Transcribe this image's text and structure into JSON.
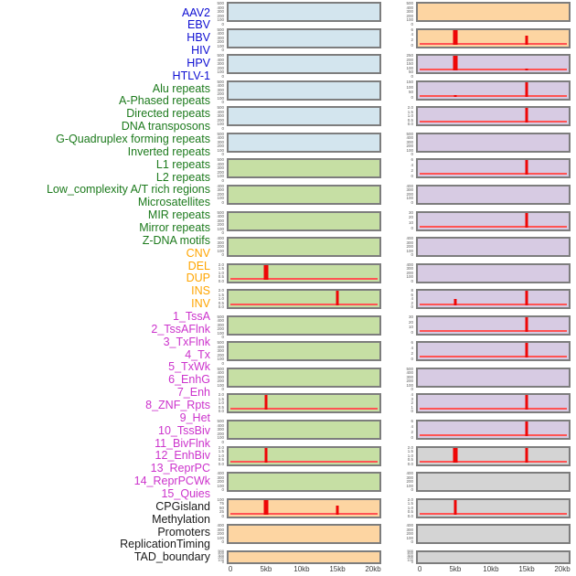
{
  "chart_data": {
    "type": "bar",
    "title": "",
    "description_of_marks": "44 genomic feature tracks in two panel columns; red impulse spikes at 5kb and 15kb positions with a red baseline at 0",
    "x_ticks": [
      "0",
      "5kb",
      "10kb",
      "15kb",
      "20kb"
    ],
    "x_range_kb": [
      0,
      20
    ],
    "x_tick_pos_pct": [
      2.4,
      25.4,
      48.5,
      71.6,
      94.7
    ],
    "legend_position": "none",
    "grid": "off",
    "group_label_colors": {
      "virus": "#0e0ed2",
      "repeat": "#1c7a1c",
      "sv": "#ffa500",
      "chromatin": "#cc33cc",
      "other": "#1a1a1a"
    },
    "panel_fills": {
      "blue": "#d3e5ee",
      "green": "#c6dfa4",
      "orange": "#fdd5a2",
      "purple": "#d7cbe3",
      "gray": "#d4d4d4"
    },
    "spike_color": "#ee0707",
    "baseline_color": "#ff5353",
    "tracks": [
      {
        "label": "AAV2",
        "group": "virus",
        "fill": "blue",
        "yticks": [
          "500",
          "400",
          "300",
          "200",
          "100",
          "0"
        ],
        "spikes": []
      },
      {
        "label": "EBV",
        "group": "virus",
        "fill": "blue",
        "yticks": [
          "500",
          "400",
          "300",
          "200",
          "100",
          "0"
        ],
        "spikes": []
      },
      {
        "label": "HBV",
        "group": "virus",
        "fill": "blue",
        "yticks": [
          "500",
          "400",
          "300",
          "200",
          "100",
          "0"
        ],
        "spikes": []
      },
      {
        "label": "HIV",
        "group": "virus",
        "fill": "blue",
        "yticks": [
          "500",
          "400",
          "300",
          "200",
          "100",
          "0"
        ],
        "spikes": []
      },
      {
        "label": "HPV",
        "group": "virus",
        "fill": "blue",
        "yticks": [
          "500",
          "400",
          "300",
          "200",
          "100",
          "0"
        ],
        "spikes": []
      },
      {
        "label": "HTLV-1",
        "group": "virus",
        "fill": "blue",
        "yticks": [
          "500",
          "400",
          "300",
          "200",
          "100",
          "0"
        ],
        "spikes": []
      },
      {
        "label": "Alu repeats",
        "group": "repeat",
        "fill": "green",
        "yticks": [
          "500",
          "400",
          "300",
          "200",
          "100",
          "0"
        ],
        "spikes": []
      },
      {
        "label": "A-Phased repeats",
        "group": "repeat",
        "fill": "green",
        "yticks": [
          "400",
          "300",
          "200",
          "100",
          "0"
        ],
        "spikes": []
      },
      {
        "label": "Directed repeats",
        "group": "repeat",
        "fill": "green",
        "yticks": [
          "500",
          "400",
          "300",
          "200",
          "100",
          "0"
        ],
        "spikes": []
      },
      {
        "label": "DNA transposons",
        "group": "repeat",
        "fill": "green",
        "yticks": [
          "400",
          "300",
          "200",
          "100",
          "0"
        ],
        "spikes": []
      },
      {
        "label": "G-Quadruplex forming repeats",
        "group": "repeat",
        "fill": "green",
        "yticks": [
          "2.0",
          "1.5",
          "1.0",
          "0.5",
          "0.0"
        ],
        "spikes": [
          {
            "x_kb": 5,
            "rel_h": 1.0,
            "wide": true
          }
        ]
      },
      {
        "label": "Inverted repeats",
        "group": "repeat",
        "fill": "green",
        "yticks": [
          "2.0",
          "1.5",
          "1.0",
          "0.5",
          "0.0"
        ],
        "spikes": [
          {
            "x_kb": 15,
            "rel_h": 1.0,
            "wide": false
          }
        ]
      },
      {
        "label": "L1 repeats",
        "group": "repeat",
        "fill": "green",
        "yticks": [
          "500",
          "400",
          "300",
          "200",
          "100",
          "0"
        ],
        "spikes": []
      },
      {
        "label": "L2 repeats",
        "group": "repeat",
        "fill": "green",
        "yticks": [
          "500",
          "400",
          "300",
          "200",
          "100",
          "0"
        ],
        "spikes": []
      },
      {
        "label": "Low_complexity A/T rich regions",
        "group": "repeat",
        "fill": "green",
        "yticks": [
          "500",
          "400",
          "300",
          "200",
          "100",
          "0"
        ],
        "spikes": []
      },
      {
        "label": "Microsatellites",
        "group": "repeat",
        "fill": "green",
        "yticks": [
          "2.0",
          "1.5",
          "1.0",
          "0.5",
          "0.0"
        ],
        "spikes": [
          {
            "x_kb": 5,
            "rel_h": 1.0,
            "wide": false
          }
        ]
      },
      {
        "label": "MIR repeats",
        "group": "repeat",
        "fill": "green",
        "yticks": [
          "500",
          "400",
          "300",
          "200",
          "100",
          "0"
        ],
        "spikes": []
      },
      {
        "label": "Mirror repeats",
        "group": "repeat",
        "fill": "green",
        "yticks": [
          "2.0",
          "1.5",
          "1.0",
          "0.5",
          "0.0"
        ],
        "spikes": [
          {
            "x_kb": 5,
            "rel_h": 1.0,
            "wide": false
          }
        ]
      },
      {
        "label": "Z-DNA motifs",
        "group": "repeat",
        "fill": "green",
        "yticks": [
          "400",
          "300",
          "200",
          "100",
          "0"
        ],
        "spikes": []
      },
      {
        "label": "CNV",
        "group": "sv",
        "fill": "orange",
        "yticks": [
          "100",
          "75",
          "50",
          "25",
          "0"
        ],
        "spikes": [
          {
            "x_kb": 5,
            "rel_h": 1.0,
            "wide": true
          },
          {
            "x_kb": 15,
            "rel_h": 0.6,
            "wide": false
          }
        ]
      },
      {
        "label": "DEL",
        "group": "sv",
        "fill": "orange",
        "yticks": [
          "400",
          "300",
          "200",
          "100",
          "0"
        ],
        "spikes": []
      },
      {
        "label": "DUP",
        "group": "sv",
        "fill": "orange",
        "yticks": [
          "500",
          "400",
          "300",
          "200",
          "100",
          "0"
        ],
        "spikes": [],
        "thin": true
      },
      {
        "label": "INS",
        "group": "sv",
        "fill": "orange",
        "yticks": [
          "500",
          "400",
          "300",
          "200",
          "100",
          "0"
        ],
        "spikes": []
      },
      {
        "label": "INV",
        "group": "sv",
        "fill": "orange",
        "yticks": [
          "6",
          "4",
          "2",
          "0"
        ],
        "spikes": [
          {
            "x_kb": 5,
            "rel_h": 1.0,
            "wide": true
          },
          {
            "x_kb": 15,
            "rel_h": 0.6,
            "wide": false
          }
        ]
      },
      {
        "label": "1_TssA",
        "group": "chromatin",
        "fill": "purple",
        "yticks": [
          "250",
          "200",
          "150",
          "100",
          "50",
          "0"
        ],
        "spikes": [
          {
            "x_kb": 5,
            "rel_h": 1.0,
            "wide": true
          },
          {
            "x_kb": 15,
            "rel_h": 0.12,
            "wide": false
          }
        ]
      },
      {
        "label": "2_TssAFlnk",
        "group": "chromatin",
        "fill": "purple",
        "yticks": [
          "150",
          "100",
          "50",
          "0"
        ],
        "spikes": [
          {
            "x_kb": 5,
            "rel_h": 0.1,
            "wide": false
          },
          {
            "x_kb": 15,
            "rel_h": 1.0,
            "wide": false
          }
        ]
      },
      {
        "label": "3_TxFlnk",
        "group": "chromatin",
        "fill": "purple",
        "yticks": [
          "2.0",
          "1.5",
          "1.0",
          "0.5",
          "0.0"
        ],
        "spikes": [
          {
            "x_kb": 15,
            "rel_h": 1.0,
            "wide": false
          }
        ]
      },
      {
        "label": "4_Tx",
        "group": "chromatin",
        "fill": "purple",
        "yticks": [
          "500",
          "400",
          "300",
          "200",
          "100",
          "0"
        ],
        "spikes": []
      },
      {
        "label": "5_TxWk",
        "group": "chromatin",
        "fill": "purple",
        "yticks": [
          "6",
          "4",
          "2",
          "0"
        ],
        "spikes": [
          {
            "x_kb": 15,
            "rel_h": 1.0,
            "wide": false
          }
        ]
      },
      {
        "label": "6_EnhG",
        "group": "chromatin",
        "fill": "purple",
        "yticks": [
          "400",
          "300",
          "200",
          "100",
          "0"
        ],
        "spikes": []
      },
      {
        "label": "7_Enh",
        "group": "chromatin",
        "fill": "purple",
        "yticks": [
          "30",
          "20",
          "10",
          "0"
        ],
        "spikes": [
          {
            "x_kb": 15,
            "rel_h": 1.0,
            "wide": false
          }
        ]
      },
      {
        "label": "8_ZNF_Rpts",
        "group": "chromatin",
        "fill": "purple",
        "yticks": [
          "400",
          "300",
          "200",
          "100",
          "0"
        ],
        "spikes": []
      },
      {
        "label": "9_Het",
        "group": "chromatin",
        "fill": "purple",
        "yticks": [
          "400",
          "300",
          "200",
          "100",
          "0"
        ],
        "spikes": []
      },
      {
        "label": "10_TssBiv",
        "group": "chromatin",
        "fill": "purple",
        "yticks": [
          "8",
          "6",
          "4",
          "2",
          "0"
        ],
        "spikes": [
          {
            "x_kb": 5,
            "rel_h": 0.45,
            "wide": false
          },
          {
            "x_kb": 15,
            "rel_h": 1.0,
            "wide": false
          }
        ]
      },
      {
        "label": "11_BivFlnk",
        "group": "chromatin",
        "fill": "purple",
        "yticks": [
          "30",
          "20",
          "10",
          "0"
        ],
        "spikes": [
          {
            "x_kb": 15,
            "rel_h": 1.0,
            "wide": false
          }
        ]
      },
      {
        "label": "12_EnhBiv",
        "group": "chromatin",
        "fill": "purple",
        "yticks": [
          "6",
          "4",
          "2",
          "0"
        ],
        "spikes": [
          {
            "x_kb": 15,
            "rel_h": 1.0,
            "wide": false
          }
        ]
      },
      {
        "label": "13_ReprPC",
        "group": "chromatin",
        "fill": "purple",
        "yticks": [
          "500",
          "400",
          "300",
          "200",
          "100",
          "0"
        ],
        "spikes": []
      },
      {
        "label": "14_ReprPCWk",
        "group": "chromatin",
        "fill": "purple",
        "yticks": [
          "4",
          "3",
          "2",
          "1",
          "0"
        ],
        "spikes": [
          {
            "x_kb": 15,
            "rel_h": 1.0,
            "wide": false
          }
        ]
      },
      {
        "label": "15_Quies",
        "group": "chromatin",
        "fill": "purple",
        "yticks": [
          "6",
          "4",
          "2",
          "0"
        ],
        "spikes": [
          {
            "x_kb": 15,
            "rel_h": 1.0,
            "wide": false
          }
        ]
      },
      {
        "label": "CPGisland",
        "group": "other",
        "fill": "gray",
        "yticks": [
          "2.0",
          "1.5",
          "1.0",
          "0.5",
          "0.0"
        ],
        "spikes": [
          {
            "x_kb": 5,
            "rel_h": 1.0,
            "wide": true
          },
          {
            "x_kb": 15,
            "rel_h": 1.0,
            "wide": false
          }
        ]
      },
      {
        "label": "Methylation",
        "group": "other",
        "fill": "gray",
        "yticks": [
          "400",
          "300",
          "200",
          "100",
          "0"
        ],
        "spikes": []
      },
      {
        "label": "Promoters",
        "group": "other",
        "fill": "gray",
        "yticks": [
          "2.0",
          "1.5",
          "1.0",
          "0.5",
          "0.0"
        ],
        "spikes": [
          {
            "x_kb": 5,
            "rel_h": 1.0,
            "wide": false
          }
        ]
      },
      {
        "label": "ReplicationTiming",
        "group": "other",
        "fill": "gray",
        "yticks": [
          "400",
          "300",
          "200",
          "100",
          "0"
        ],
        "spikes": []
      },
      {
        "label": "TAD_boundary",
        "group": "other",
        "fill": "gray",
        "yticks": [
          "500",
          "400",
          "300",
          "200",
          "100",
          "0"
        ],
        "spikes": [],
        "thin": true
      }
    ]
  }
}
